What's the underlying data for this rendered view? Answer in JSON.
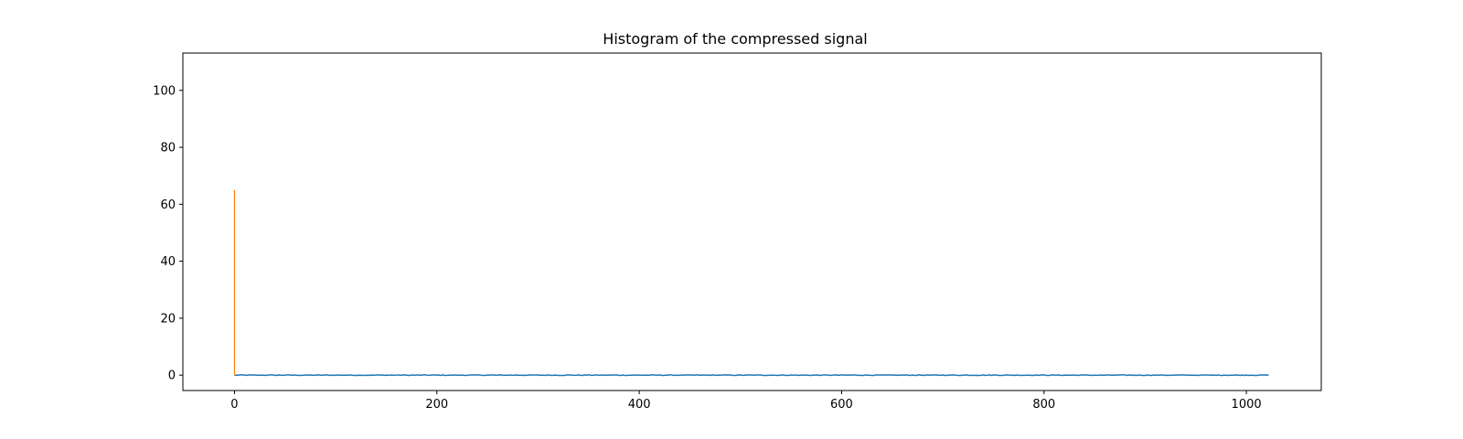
{
  "chart_data": {
    "type": "line",
    "title": "Histogram of the compressed signal",
    "xlabel": "",
    "ylabel": "",
    "xlim": [
      -51,
      1074
    ],
    "ylim": [
      -5.4,
      113.1
    ],
    "x_ticks": [
      0,
      200,
      400,
      600,
      800,
      1000
    ],
    "y_ticks": [
      0,
      20,
      40,
      60,
      80,
      100
    ],
    "grid": false,
    "legend": "none",
    "series": [
      {
        "color": "#1f77b4",
        "x_range": [
          0,
          1023
        ],
        "baseline": 0.0,
        "noise_amplitude": 0.12
      },
      {
        "color": "#ff7f0e",
        "x": [
          0,
          0
        ],
        "y": [
          0,
          65
        ]
      }
    ]
  }
}
